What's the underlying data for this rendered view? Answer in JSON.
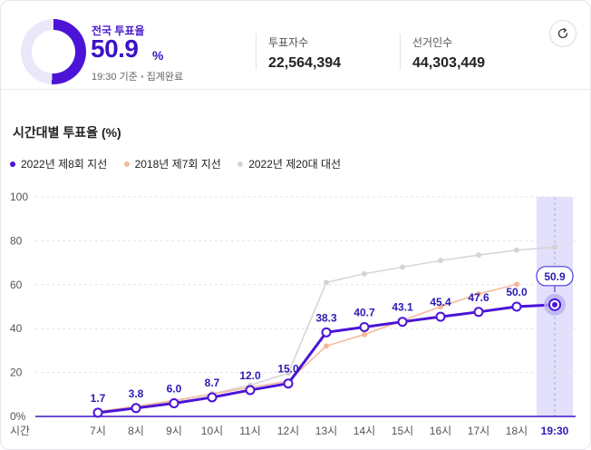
{
  "header": {
    "turnout_label": "전국 투표율",
    "turnout_rate": "50.9",
    "turnout_unit": "%",
    "turnout_fraction": 0.509,
    "asof_time": "19:30 기준",
    "asof_status": "집계완료",
    "voters_label": "투표자수",
    "voters_value": "22,564,394",
    "electorate_label": "선거인수",
    "electorate_value": "44,303,449"
  },
  "colors": {
    "current": "#4b14d6",
    "prev_local": "#f5b89a",
    "prev_presidential": "#d4d4d8",
    "donut_track": "#e9e7f8",
    "highlight": "#e2e0fb"
  },
  "chart_data": {
    "type": "line",
    "title": "시간대별 투표율 (%)",
    "xlabel": "시간",
    "categories": [
      "7시",
      "8시",
      "9시",
      "10시",
      "11시",
      "12시",
      "13시",
      "14시",
      "15시",
      "16시",
      "17시",
      "18시",
      "19:30"
    ],
    "ylim": [
      0,
      100
    ],
    "yticks": [
      0,
      20,
      40,
      60,
      80,
      100
    ],
    "ytick_labels": [
      "0%",
      "20",
      "40",
      "60",
      "80",
      "100"
    ],
    "highlight_category": "19:30",
    "grid": true,
    "legend_position": "top-left",
    "series": [
      {
        "name": "2022년 제8회 지선",
        "values": [
          1.7,
          3.8,
          6.0,
          8.7,
          12.0,
          15.0,
          38.3,
          40.7,
          43.1,
          45.4,
          47.6,
          50.0,
          50.9
        ],
        "labels": [
          "1.7",
          "3.8",
          "6.0",
          "8.7",
          "12.0",
          "15.0",
          "38.3",
          "40.7",
          "43.1",
          "45.4",
          "47.6",
          "50.0",
          "50.9"
        ]
      },
      {
        "name": "2018년 제7회 지선",
        "values": [
          2.2,
          4.6,
          7.3,
          10.1,
          13.3,
          16.0,
          32.1,
          37.3,
          43.7,
          50.0,
          55.8,
          60.2,
          null
        ]
      },
      {
        "name": "2022년 제20대 대선",
        "values": [
          1.6,
          4.1,
          6.9,
          10.4,
          14.2,
          19.7,
          61.0,
          65.0,
          68.0,
          71.0,
          73.5,
          75.7,
          77.1
        ]
      }
    ]
  }
}
